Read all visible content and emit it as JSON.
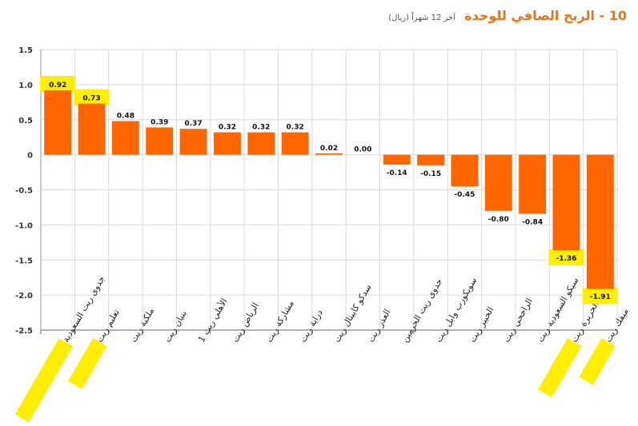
{
  "title": {
    "main": "10 - الربح الصافي للوحدة",
    "sub": "آخر 12 شهراً (ريال)"
  },
  "colors": {
    "bar": "#ff6600",
    "highlight": "#ffee00",
    "title": "#e8741a",
    "grid": "#d9d9d9"
  },
  "chart_data": {
    "type": "bar",
    "title": "10 - الربح الصافي للوحدة",
    "subtitle": "آخر 12 شهراً (ريال)",
    "categories": [
      "جدوى ريت السعودية",
      "تعليم ريت",
      "ملكية ريت",
      "بنيان ريت",
      "الأهلي ريت 1",
      "الرياض ريت",
      "مشاركة ريت",
      "دراية ريت",
      "سدكو كابيتال ريت",
      "العذر ريت",
      "جدوى ريت الحرمين",
      "سويكورب وابل ريت",
      "الخبير ريت",
      "الراجحي ريت",
      "سيكو السعودية ريت",
      "الجزيرة ريت",
      "ميفك ريت"
    ],
    "values": [
      0.92,
      0.73,
      0.48,
      0.39,
      0.37,
      0.32,
      0.32,
      0.32,
      0.02,
      0.0,
      -0.14,
      -0.15,
      -0.45,
      -0.8,
      -0.84,
      -1.36,
      -1.91
    ],
    "value_labels": [
      "0.92",
      "0.73",
      "0.48",
      "0.39",
      "0.37",
      "0.32",
      "0.32",
      "0.32",
      "0.02",
      "0.00",
      "-0.14",
      "-0.15",
      "-0.45",
      "-0.80",
      "-0.84",
      "-1.36",
      "-1.91"
    ],
    "highlighted_values": [
      0,
      1,
      15,
      16
    ],
    "highlighted_categories": [
      0,
      1,
      15,
      16
    ],
    "yticks": [
      1.5,
      1.0,
      0.5,
      0,
      -0.5,
      -1.0,
      -1.5,
      -2.0,
      -2.5
    ],
    "ytick_labels": [
      "1.5",
      "1.0",
      "0.5",
      "0",
      "-0.5",
      "-1.0",
      "-1.5",
      "-2.0",
      "-2.5"
    ],
    "ylim": [
      -2.5,
      1.5
    ],
    "grid": true,
    "xlabel": "",
    "ylabel": ""
  }
}
